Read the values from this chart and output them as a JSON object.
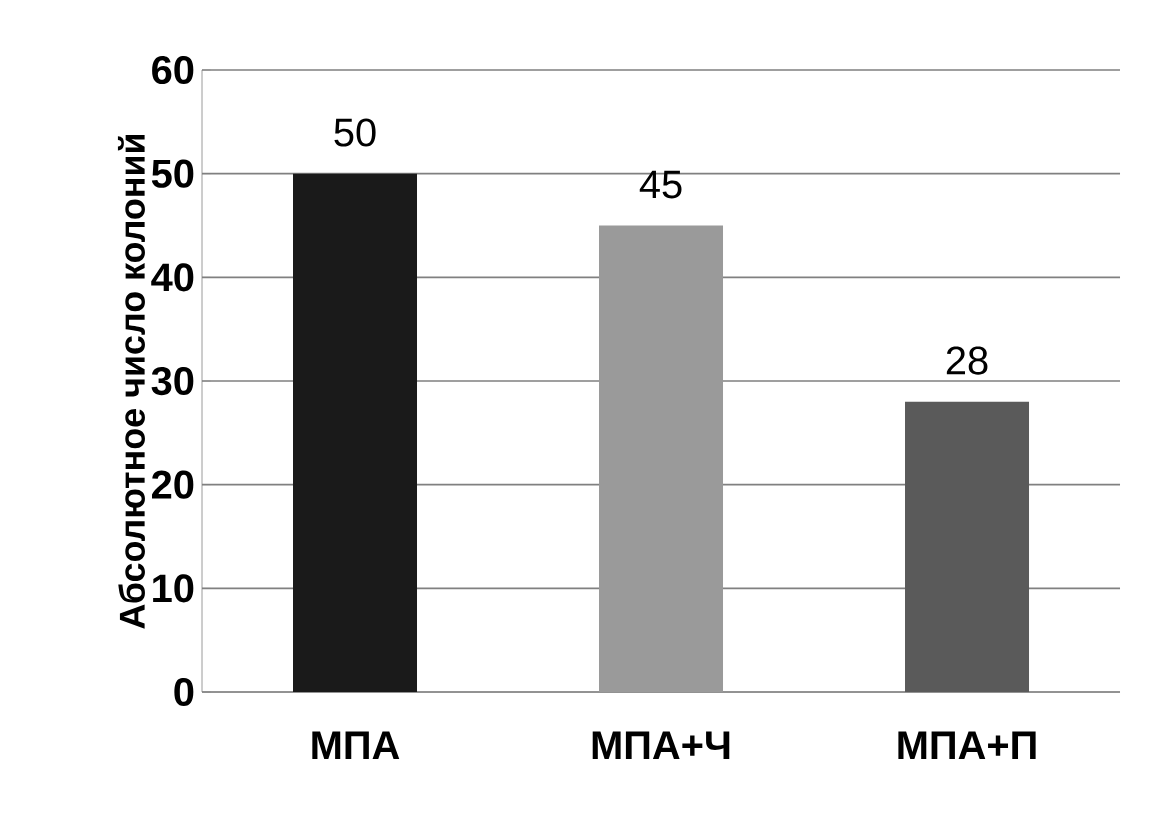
{
  "chart_data": {
    "type": "bar",
    "ylabel": "Абсолютное число колоний",
    "categories": [
      "МПА",
      "МПА+Ч",
      "МПА+П"
    ],
    "values": [
      50,
      45,
      28
    ],
    "colors": [
      "#1a1a1a",
      "#9a9a9a",
      "#5a5a5a"
    ],
    "ylim": [
      0,
      60
    ],
    "yticks": [
      0,
      10,
      20,
      30,
      40,
      50,
      60
    ],
    "data_labels": true,
    "grid": "y"
  }
}
